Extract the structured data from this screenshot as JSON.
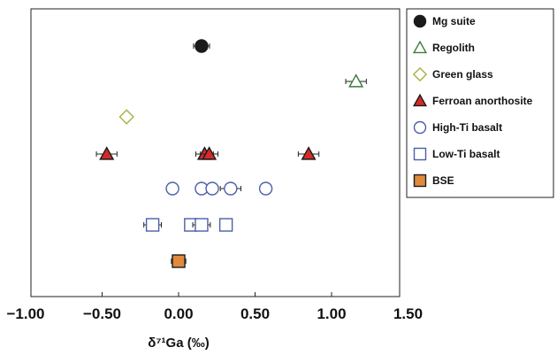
{
  "chart_data": {
    "type": "scatter",
    "xlabel": "δ⁷¹Ga (‰)",
    "xlim": [
      -1.0,
      1.5
    ],
    "x_ticks": [
      "−1.00",
      "−0.50",
      "0.00",
      "0.50",
      "1.00",
      "1.50"
    ],
    "x_tick_values": [
      -1.0,
      -0.5,
      0.0,
      0.5,
      1.0,
      1.5
    ],
    "grid": false,
    "legend_position": "right",
    "series": [
      {
        "name": "Mg suite",
        "marker": "circle-filled",
        "color": "#1a1a1a",
        "stroke": "#1a1a1a",
        "points": [
          {
            "x": 0.15,
            "err": 0.035
          }
        ]
      },
      {
        "name": "Regolith",
        "marker": "triangle-open",
        "color": "none",
        "stroke": "#3c7a3c",
        "points": [
          {
            "x": 1.16,
            "err": 0.05
          }
        ]
      },
      {
        "name": "Green glass",
        "marker": "diamond-open",
        "color": "none",
        "stroke": "#a9b040",
        "points": [
          {
            "x": -0.34,
            "err": 0.0
          }
        ]
      },
      {
        "name": "Ferroan anorthosite",
        "marker": "triangle-filled",
        "color": "#d42a2a",
        "stroke": "#1a1a1a",
        "points": [
          {
            "x": -0.47,
            "err": 0.05
          },
          {
            "x": 0.17,
            "err": 0.04
          },
          {
            "x": 0.2,
            "err": 0.04
          },
          {
            "x": 0.85,
            "err": 0.05
          }
        ]
      },
      {
        "name": "High-Ti basalt",
        "marker": "circle-open",
        "color": "none",
        "stroke": "#4a5fa8",
        "points": [
          {
            "x": -0.04,
            "err": 0.0
          },
          {
            "x": 0.15,
            "err": 0.0
          },
          {
            "x": 0.22,
            "err": 0.0
          },
          {
            "x": 0.34,
            "err": 0.05
          },
          {
            "x": 0.57,
            "err": 0.0
          }
        ]
      },
      {
        "name": "Low-Ti basalt",
        "marker": "square-open",
        "color": "none",
        "stroke": "#4a5fa8",
        "points": [
          {
            "x": -0.17,
            "err": 0.04
          },
          {
            "x": 0.08,
            "err": 0.0
          },
          {
            "x": 0.15,
            "err": 0.04
          },
          {
            "x": 0.31,
            "err": 0.0
          }
        ]
      },
      {
        "name": "BSE",
        "marker": "square-filled",
        "color": "#e08a3c",
        "stroke": "#1a1a1a",
        "points": [
          {
            "x": 0.0,
            "err": 0.03
          }
        ]
      }
    ]
  }
}
